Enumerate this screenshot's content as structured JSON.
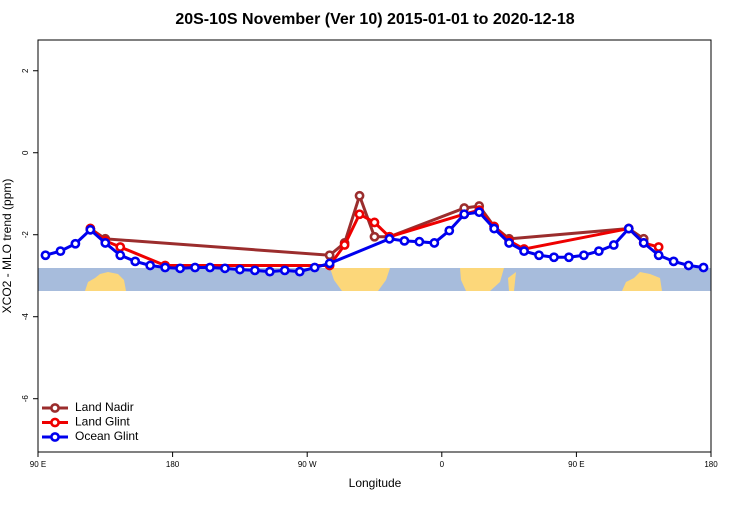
{
  "chart_data": {
    "type": "line",
    "title": "20S-10S November (Ver 10)   2015-01-01 to 2020-12-18",
    "x_label": "Longitude",
    "y_label": "XCO2 - MLO trend (ppm)",
    "xlim": [
      90,
      540
    ],
    "ylim": [
      -7.3,
      2.75
    ],
    "xticks": [
      {
        "value": 90,
        "label": "90 E"
      },
      180,
      {
        "value": 270,
        "label": "90 W"
      },
      {
        "value": 360,
        "label": "0"
      },
      {
        "value": 450,
        "label": "90 E"
      },
      {
        "value": 540,
        "label": "180"
      }
    ],
    "yticks": [
      2,
      0,
      -2,
      -4,
      -6
    ],
    "legend": "bottom-left",
    "series": [
      {
        "name": "Land Nadir",
        "color": "#9b2d2d",
        "x": [
          125,
          135,
          285,
          295,
          305,
          315,
          325,
          375,
          385,
          395,
          405,
          485,
          495
        ],
        "values": [
          -1.85,
          -2.1,
          -2.5,
          -2.2,
          -1.05,
          -2.05,
          -2.05,
          -1.35,
          -1.3,
          -1.8,
          -2.1,
          -1.85,
          -2.1
        ]
      },
      {
        "name": "Land Glint",
        "color": "#ee0000",
        "x": [
          125,
          135,
          145,
          175,
          285,
          295,
          305,
          315,
          325,
          375,
          385,
          395,
          405,
          415,
          485,
          495,
          505
        ],
        "values": [
          -1.85,
          -2.15,
          -2.3,
          -2.75,
          -2.75,
          -2.25,
          -1.5,
          -1.7,
          -2.05,
          -1.5,
          -1.4,
          -1.8,
          -2.15,
          -2.35,
          -1.85,
          -2.2,
          -2.3
        ]
      },
      {
        "name": "Ocean Glint",
        "color": "#0000ee",
        "x": [
          95,
          105,
          115,
          125,
          135,
          145,
          155,
          165,
          175,
          185,
          195,
          205,
          215,
          225,
          235,
          245,
          255,
          265,
          275,
          285,
          325,
          335,
          345,
          355,
          365,
          375,
          385,
          395,
          405,
          415,
          425,
          435,
          445,
          455,
          465,
          475,
          485,
          495,
          505,
          515,
          525,
          535
        ],
        "values": [
          -2.5,
          -2.4,
          -2.22,
          -1.88,
          -2.2,
          -2.5,
          -2.65,
          -2.75,
          -2.8,
          -2.82,
          -2.8,
          -2.8,
          -2.82,
          -2.85,
          -2.87,
          -2.9,
          -2.87,
          -2.9,
          -2.8,
          -2.7,
          -2.1,
          -2.15,
          -2.17,
          -2.2,
          -1.9,
          -1.5,
          -1.45,
          -1.85,
          -2.2,
          -2.4,
          -2.5,
          -2.55,
          -2.55,
          -2.5,
          -2.4,
          -2.25,
          -1.85,
          -2.2,
          -2.5,
          -2.65,
          -2.75,
          -2.8
        ]
      }
    ]
  }
}
